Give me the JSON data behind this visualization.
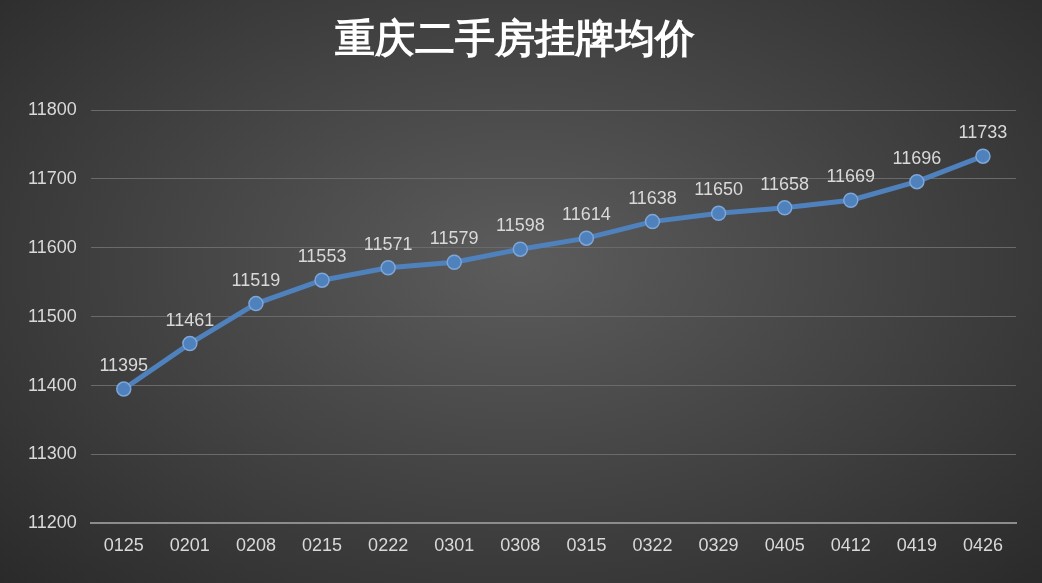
{
  "chart_data": {
    "type": "line",
    "title": "重庆二手房挂牌均价",
    "categories": [
      "0125",
      "0201",
      "0208",
      "0215",
      "0222",
      "0301",
      "0308",
      "0315",
      "0322",
      "0329",
      "0405",
      "0412",
      "0419",
      "0426"
    ],
    "series": [
      {
        "color": "#4f81bd",
        "values": [
          11395,
          11461,
          11519,
          11553,
          11571,
          11579,
          11598,
          11614,
          11638,
          11650,
          11658,
          11669,
          11696,
          11733
        ]
      }
    ],
    "ylim": [
      11200,
      11800
    ],
    "yticks": [
      11200,
      11300,
      11400,
      11500,
      11600,
      11700,
      11800
    ],
    "grid": "y",
    "marker": "circle",
    "line_style": "solid",
    "data_labels": true
  }
}
